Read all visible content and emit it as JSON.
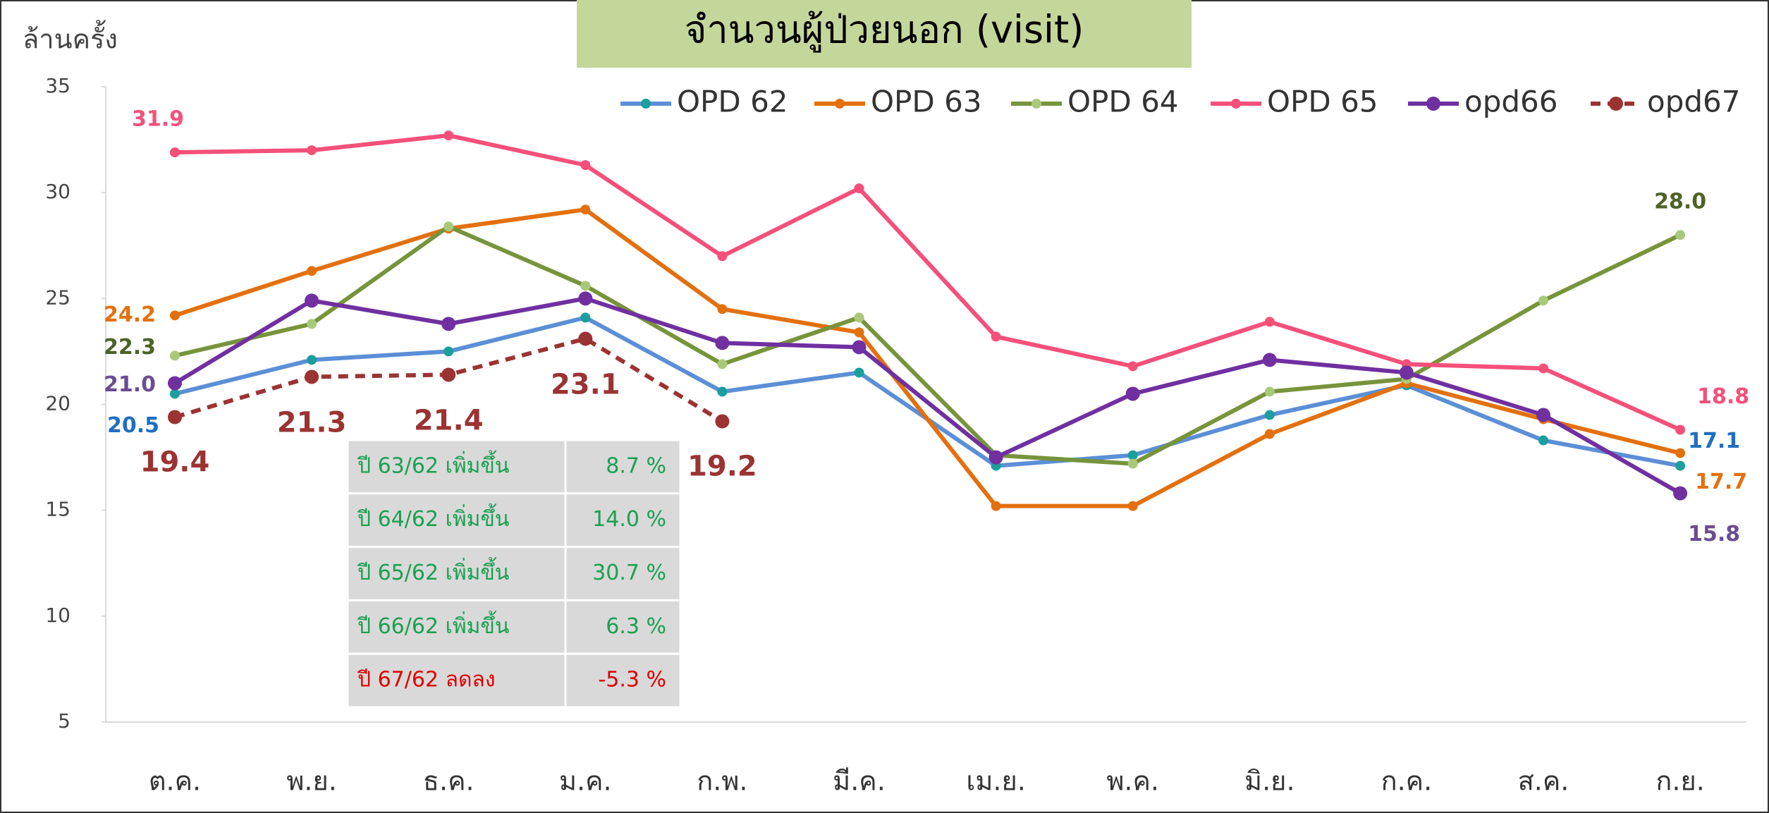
{
  "chart_data": {
    "type": "line",
    "title": "จำนวนผู้ป่วยนอก (visit)",
    "y_label": "ล้านครั้ง",
    "categories": [
      "ต.ค.",
      "พ.ย.",
      "ธ.ค.",
      "ม.ค.",
      "ก.พ.",
      "มี.ค.",
      "เม.ย.",
      "พ.ค.",
      "มิ.ย.",
      "ก.ค.",
      "ส.ค.",
      "ก.ย."
    ],
    "ylim": [
      5,
      35
    ],
    "yticks": [
      5,
      10,
      15,
      20,
      25,
      30,
      35
    ],
    "grid": false,
    "legend": "top-right",
    "series": [
      {
        "name": "OPD 62",
        "color": "#5b8fd6",
        "marker_color": "#1a9e9e",
        "label_color": "#1f6fc0",
        "dash": false,
        "values": [
          20.5,
          22.1,
          22.5,
          24.1,
          20.6,
          21.5,
          17.1,
          17.6,
          19.5,
          20.9,
          18.3,
          17.1
        ],
        "value_labels": [
          "20.5",
          null,
          null,
          null,
          null,
          null,
          null,
          null,
          null,
          null,
          null,
          "17.1"
        ]
      },
      {
        "name": "OPD 63",
        "color": "#e3700f",
        "marker_color": "#e3700f",
        "label_color": "#e3700f",
        "dash": false,
        "values": [
          24.2,
          26.3,
          28.3,
          29.2,
          24.5,
          23.4,
          15.2,
          15.2,
          18.6,
          21.0,
          19.3,
          17.7
        ],
        "value_labels": [
          "24.2",
          null,
          null,
          null,
          null,
          null,
          null,
          null,
          null,
          null,
          null,
          "17.7"
        ]
      },
      {
        "name": "OPD 64",
        "color": "#77943c",
        "marker_color": "#a9c97a",
        "label_color": "#4f6228",
        "dash": false,
        "values": [
          22.3,
          23.8,
          28.4,
          25.6,
          21.9,
          24.1,
          17.6,
          17.2,
          20.6,
          21.2,
          24.9,
          28.0
        ],
        "value_labels": [
          "22.3",
          null,
          null,
          null,
          null,
          null,
          null,
          null,
          null,
          null,
          null,
          "28.0"
        ]
      },
      {
        "name": "OPD 65",
        "color": "#f4507a",
        "marker_color": "#f4507a",
        "label_color": "#f4507a",
        "dash": false,
        "values": [
          31.9,
          32.0,
          32.7,
          31.3,
          27.0,
          30.2,
          23.2,
          21.8,
          23.9,
          21.9,
          21.7,
          18.8
        ],
        "value_labels": [
          "31.9",
          null,
          null,
          null,
          null,
          null,
          null,
          null,
          null,
          null,
          null,
          "18.8"
        ]
      },
      {
        "name": "opd66",
        "color": "#7030a0",
        "marker_color": "#7030a0",
        "label_color": "#6a4c93",
        "dash": false,
        "big": true,
        "values": [
          21.0,
          24.9,
          23.8,
          25.0,
          22.9,
          22.7,
          17.5,
          20.5,
          22.1,
          21.5,
          19.5,
          15.8
        ],
        "value_labels": [
          "21.0",
          null,
          null,
          null,
          null,
          null,
          null,
          null,
          null,
          null,
          null,
          "15.8"
        ]
      },
      {
        "name": "opd67",
        "color": "#9b3333",
        "marker_color": "#9b3333",
        "label_color": "#9b3333",
        "dash": true,
        "big": true,
        "values": [
          19.4,
          21.3,
          21.4,
          23.1,
          19.2,
          null,
          null,
          null,
          null,
          null,
          null,
          null
        ],
        "value_labels": [
          "19.4",
          "21.3",
          "21.4",
          "23.1",
          "19.2",
          null,
          null,
          null,
          null,
          null,
          null,
          null
        ]
      }
    ],
    "table": {
      "rows": [
        [
          "ปี 63/62 เพิ่มขึ้น",
          "8.7 %"
        ],
        [
          "ปี 64/62 เพิ่มขึ้น",
          "14.0 %"
        ],
        [
          "ปี 65/62 เพิ่มขึ้น",
          "30.7 %"
        ],
        [
          "ปี 66/62 เพิ่มขึ้น",
          "6.3 %"
        ],
        [
          "ปี 67/62 ลดลง",
          "-5.3 %"
        ]
      ],
      "colors": [
        "#1aa050",
        "#1aa050",
        "#1aa050",
        "#1aa050",
        "#e00000"
      ]
    }
  }
}
